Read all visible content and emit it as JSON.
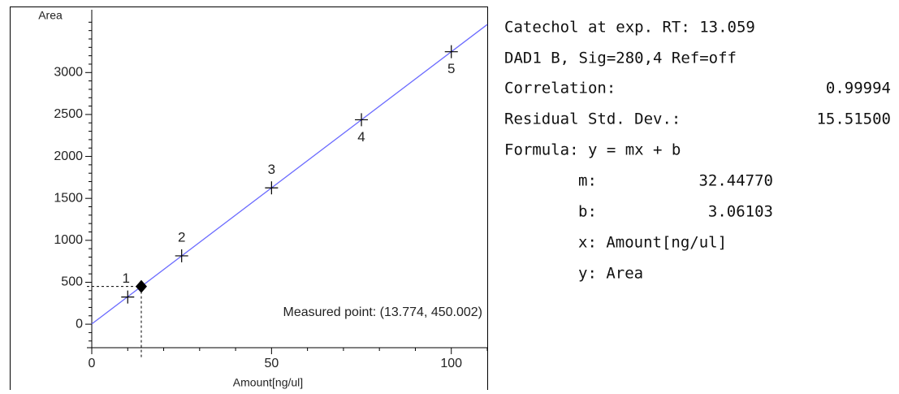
{
  "chart_data": {
    "type": "calibration",
    "ylabel": "Area",
    "xlabel": "Amount[ng/ul]",
    "xlim": [
      0,
      110
    ],
    "xticks": [
      0,
      50,
      100
    ],
    "ylim": [
      -280,
      3700
    ],
    "yticks": [
      0,
      500,
      1000,
      1500,
      2000,
      2500,
      3000
    ],
    "point_labels": [
      "1",
      "2",
      "3",
      "4",
      "5"
    ],
    "x": [
      10,
      25,
      50,
      75,
      100
    ],
    "values": [
      324,
      815,
      1625,
      2437,
      3248
    ],
    "color": "#6b6bff",
    "measured_point": {
      "x": 13.774,
      "y": 450.002,
      "label": "Measured point: (13.774, 450.002)"
    }
  },
  "info": {
    "title": "Catechol at exp. RT: 13.059",
    "signal": "DAD1 B, Sig=280,4 Ref=off",
    "correlation": {
      "label": "Correlation:",
      "value": 0.99994
    },
    "residual": {
      "label": "Residual Std. Dev.:",
      "value": 15.515,
      "value_label": "15.51500"
    },
    "formula": "Formula: y = mx + b",
    "m": {
      "label": "m:",
      "value": 32.4477,
      "value_label": "32.44770"
    },
    "b": {
      "label": "b:",
      "value": 3.06103
    },
    "x_def": "x: Amount[ng/ul]",
    "y_def": "y: Area"
  }
}
